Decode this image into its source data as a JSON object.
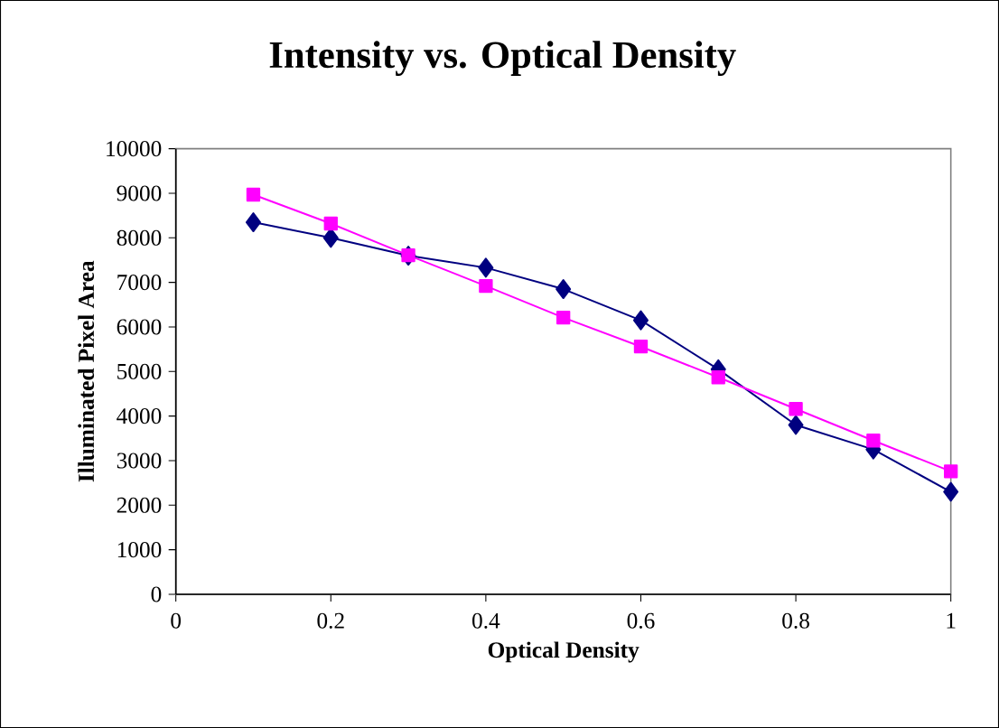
{
  "chart_data": {
    "type": "line",
    "title": "Intensity vs. Optical Density",
    "xlabel": "Optical Density",
    "ylabel": "Illuminated Pixel Area",
    "x": [
      0.1,
      0.2,
      0.3,
      0.4,
      0.5,
      0.6,
      0.7,
      0.8,
      0.9,
      1.0
    ],
    "series": [
      {
        "color": "#000080",
        "marker": "diamond",
        "values": [
          8350,
          8000,
          7600,
          7330,
          6850,
          6150,
          5050,
          3800,
          3250,
          2300
        ]
      },
      {
        "color": "#ff00ff",
        "marker": "square",
        "values": [
          8970,
          8320,
          7610,
          6920,
          6210,
          5560,
          4870,
          4160,
          3450,
          2760
        ]
      }
    ],
    "xlim": [
      0,
      1
    ],
    "xticks": [
      0,
      0.2,
      0.4,
      0.6,
      0.8,
      1
    ],
    "ylim": [
      0,
      10000
    ],
    "yticks": [
      0,
      1000,
      2000,
      3000,
      4000,
      5000,
      6000,
      7000,
      8000,
      9000,
      10000
    ],
    "line_style": "solid"
  }
}
